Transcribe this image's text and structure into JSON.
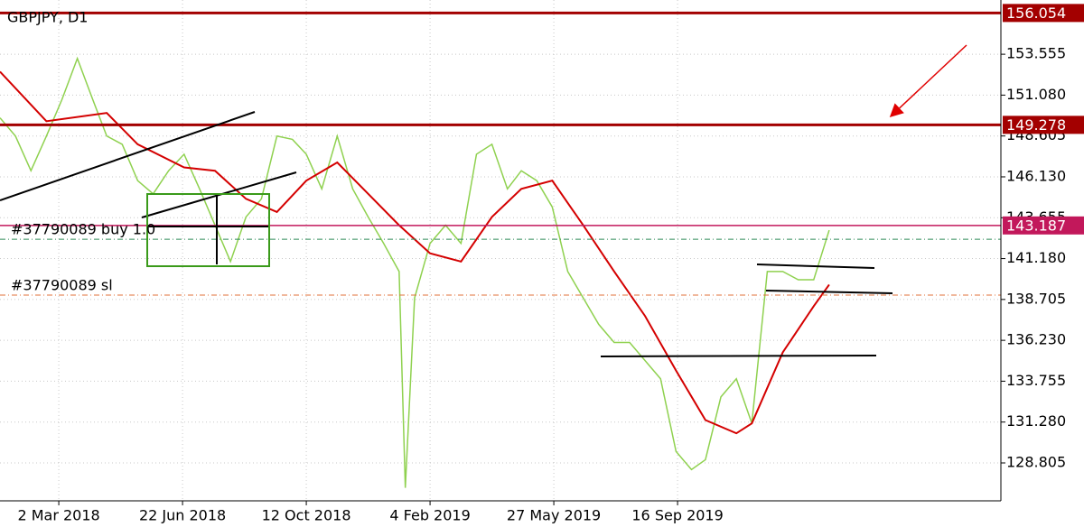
{
  "chart_data": {
    "type": "line",
    "title": "GBPJPY, D1",
    "xlim": [
      0,
      647
    ],
    "ylim": [
      126.51,
      156.84
    ],
    "xticks": [
      {
        "value": 38,
        "label": "2 Mar 2018"
      },
      {
        "value": 118,
        "label": "22 Jun 2018"
      },
      {
        "value": 198,
        "label": "12 Oct 2018"
      },
      {
        "value": 278,
        "label": "4 Feb 2019"
      },
      {
        "value": 358,
        "label": "27 May 2019"
      },
      {
        "value": 438,
        "label": "16 Sep 2019"
      }
    ],
    "yticks": [
      {
        "value": 128.805,
        "label": "128.805"
      },
      {
        "value": 131.28,
        "label": "131.280"
      },
      {
        "value": 133.755,
        "label": "133.755"
      },
      {
        "value": 136.23,
        "label": "136.230"
      },
      {
        "value": 138.705,
        "label": "138.705"
      },
      {
        "value": 141.18,
        "label": "141.180"
      },
      {
        "value": 143.655,
        "label": "143.655"
      },
      {
        "value": 146.13,
        "label": "146.130"
      },
      {
        "value": 148.605,
        "label": "148.605"
      },
      {
        "value": 151.08,
        "label": "151.080"
      },
      {
        "value": 153.555,
        "label": "153.555"
      }
    ],
    "grid": true,
    "series": [
      {
        "color": "#8fd14f",
        "x": [
          0,
          10,
          20,
          30,
          40,
          50,
          60,
          69,
          79,
          89,
          99,
          109,
          119,
          129,
          139,
          149,
          159,
          169,
          179,
          189,
          198,
          208,
          218,
          228,
          238,
          248,
          258,
          262,
          268,
          278,
          288,
          298,
          308,
          318,
          328,
          337,
          347,
          357,
          367,
          377,
          387,
          397,
          407,
          417,
          427,
          437,
          447,
          456,
          466,
          476,
          486,
          496,
          506,
          516,
          526,
          536
        ],
        "values": [
          149.7,
          148.6,
          146.5,
          148.6,
          150.8,
          153.3,
          150.8,
          148.6,
          148.1,
          145.9,
          145.1,
          146.5,
          147.5,
          145.4,
          143.2,
          141.0,
          143.7,
          144.8,
          148.6,
          148.4,
          147.5,
          145.4,
          148.6,
          145.4,
          143.7,
          142.1,
          140.4,
          127.3,
          138.8,
          142.1,
          143.2,
          142.1,
          147.5,
          148.1,
          145.4,
          146.5,
          145.9,
          144.3,
          140.4,
          138.8,
          137.2,
          136.1,
          136.1,
          135.0,
          133.9,
          129.5,
          128.4,
          129.0,
          132.8,
          133.9,
          131.2,
          140.4,
          140.4,
          139.9,
          139.9,
          142.9
        ]
      },
      {
        "color": "#d40000",
        "x": [
          0,
          30,
          69,
          89,
          119,
          139,
          159,
          179,
          198,
          218,
          238,
          258,
          278,
          298,
          318,
          337,
          357,
          377,
          397,
          417,
          437,
          456,
          476,
          486,
          506,
          526,
          536
        ],
        "values": [
          152.5,
          149.5,
          150.0,
          148.1,
          146.7,
          146.5,
          144.8,
          144.0,
          145.9,
          147.0,
          145.1,
          143.2,
          141.5,
          141.0,
          143.7,
          145.4,
          145.9,
          143.2,
          140.4,
          137.7,
          134.4,
          131.4,
          130.6,
          131.2,
          135.5,
          138.3,
          139.6
        ]
      }
    ],
    "levels": [
      {
        "value": 156.054,
        "color": "#a30000"
      },
      {
        "value": 149.278,
        "color": "#a30000"
      },
      {
        "value": 143.187,
        "color": "#c2185b"
      }
    ],
    "orders": [
      {
        "label": "#37790089 buy 1.0",
        "value": 142.35,
        "color": "#2e8b57"
      },
      {
        "label": "#37790089 sl",
        "value": 138.97,
        "color": "#e0703a"
      }
    ]
  }
}
